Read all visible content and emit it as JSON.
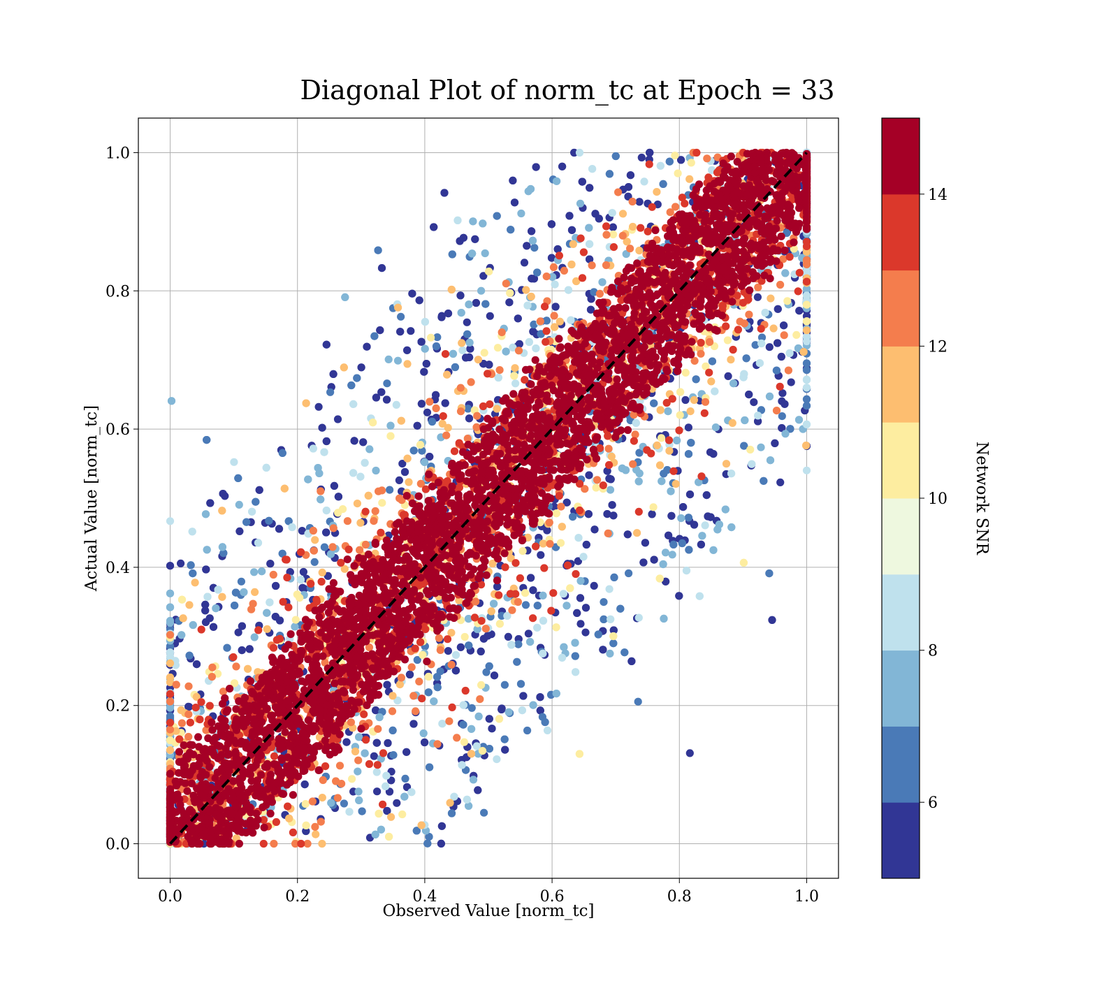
{
  "chart_data": {
    "type": "scatter",
    "title": "Diagonal Plot of norm_tc at Epoch = 33",
    "xlabel": "Observed Value [norm_tc]",
    "ylabel": "Actual Value [norm_tc]",
    "xlim": [
      -0.05,
      1.05
    ],
    "ylim": [
      -0.05,
      1.05
    ],
    "xticks": [
      0.0,
      0.2,
      0.4,
      0.6,
      0.8,
      1.0
    ],
    "yticks": [
      0.0,
      0.2,
      0.4,
      0.6,
      0.8,
      1.0
    ],
    "x_tick_labels": [
      "0.0",
      "0.2",
      "0.4",
      "0.6",
      "0.8",
      "1.0"
    ],
    "y_tick_labels": [
      "0.0",
      "0.2",
      "0.4",
      "0.6",
      "0.8",
      "1.0"
    ],
    "grid": true,
    "reference_line": {
      "style": "dashed",
      "color": "#000000",
      "from": [
        0,
        0
      ],
      "to": [
        1,
        1
      ]
    },
    "colorbar": {
      "label": "Network SNR",
      "range": [
        5,
        15
      ],
      "ticks": [
        6,
        8,
        10,
        12,
        14
      ],
      "tick_labels": [
        "6",
        "8",
        "10",
        "12",
        "14"
      ],
      "bins": [
        {
          "from": 5,
          "to": 6,
          "color": "#313695"
        },
        {
          "from": 6,
          "to": 7,
          "color": "#4a7ab7"
        },
        {
          "from": 7,
          "to": 8,
          "color": "#82b6d6"
        },
        {
          "from": 8,
          "to": 9,
          "color": "#bfe1ed"
        },
        {
          "from": 9,
          "to": 10,
          "color": "#eef8df"
        },
        {
          "from": 10,
          "to": 11,
          "color": "#fdeda0"
        },
        {
          "from": 11,
          "to": 12,
          "color": "#fdbe70"
        },
        {
          "from": 12,
          "to": 13,
          "color": "#f47d4d"
        },
        {
          "from": 13,
          "to": 14,
          "color": "#db382b"
        },
        {
          "from": 14,
          "to": 15,
          "color": "#a50026"
        }
      ]
    },
    "distribution": {
      "n_points_rendered": 9000,
      "description_key": "points cluster along y = x; high SNR (>=14) near diagonal, low SNR widely scattered",
      "band_halfwidth_high_snr": 0.09,
      "band_halfwidth_mid_snr": 0.16,
      "marker_color_outlier_classes": [
        "#313695",
        "#4a7ab7",
        "#82b6d6",
        "#bfe1ed",
        "#fdeda0",
        "#fdbe70"
      ]
    }
  }
}
